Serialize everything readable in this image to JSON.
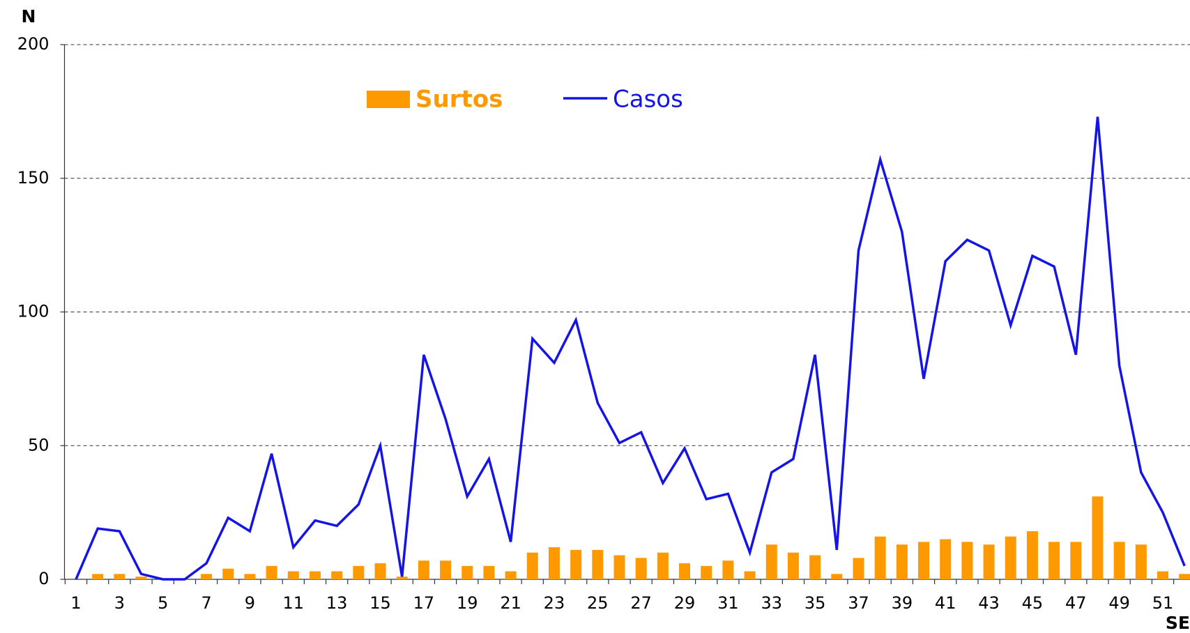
{
  "chart_data": {
    "type": "bar_line",
    "y_label": "N",
    "x_label": "SE",
    "categories": [
      "1",
      null,
      "3",
      null,
      "5",
      null,
      "7",
      null,
      "9",
      null,
      "11",
      null,
      "13",
      null,
      "15",
      null,
      "17",
      null,
      "19",
      null,
      "21",
      null,
      "23",
      null,
      "25",
      null,
      "27",
      null,
      "29",
      null,
      "31",
      null,
      "33",
      null,
      "35",
      null,
      "37",
      null,
      "39",
      null,
      "41",
      null,
      "43",
      null,
      "45",
      null,
      "47",
      null,
      "49",
      null,
      "51",
      null
    ],
    "series": [
      {
        "name": "Surtos",
        "type": "bar",
        "color": "#ff9900",
        "values": [
          0,
          2,
          2,
          1,
          0,
          0,
          2,
          4,
          2,
          5,
          3,
          3,
          3,
          5,
          6,
          1,
          7,
          7,
          5,
          5,
          3,
          10,
          12,
          11,
          11,
          9,
          8,
          10,
          6,
          5,
          7,
          3,
          13,
          10,
          9,
          2,
          8,
          16,
          13,
          14,
          15,
          14,
          13,
          16,
          18,
          14,
          14,
          31,
          14,
          13,
          3,
          2
        ]
      },
      {
        "name": "Casos",
        "type": "line",
        "color": "#1414e6",
        "values": [
          0,
          19,
          18,
          2,
          0,
          0,
          6,
          23,
          18,
          47,
          12,
          22,
          20,
          28,
          50,
          1,
          84,
          60,
          31,
          45,
          14,
          90,
          81,
          97,
          66,
          51,
          55,
          36,
          49,
          30,
          32,
          10,
          40,
          45,
          84,
          11,
          123,
          157,
          130,
          75,
          119,
          127,
          123,
          95,
          121,
          117,
          84,
          173,
          80,
          40,
          25,
          5
        ]
      }
    ],
    "ylim": [
      0,
      200
    ],
    "yticks": [
      0,
      50,
      100,
      150,
      200
    ],
    "grid": true
  }
}
